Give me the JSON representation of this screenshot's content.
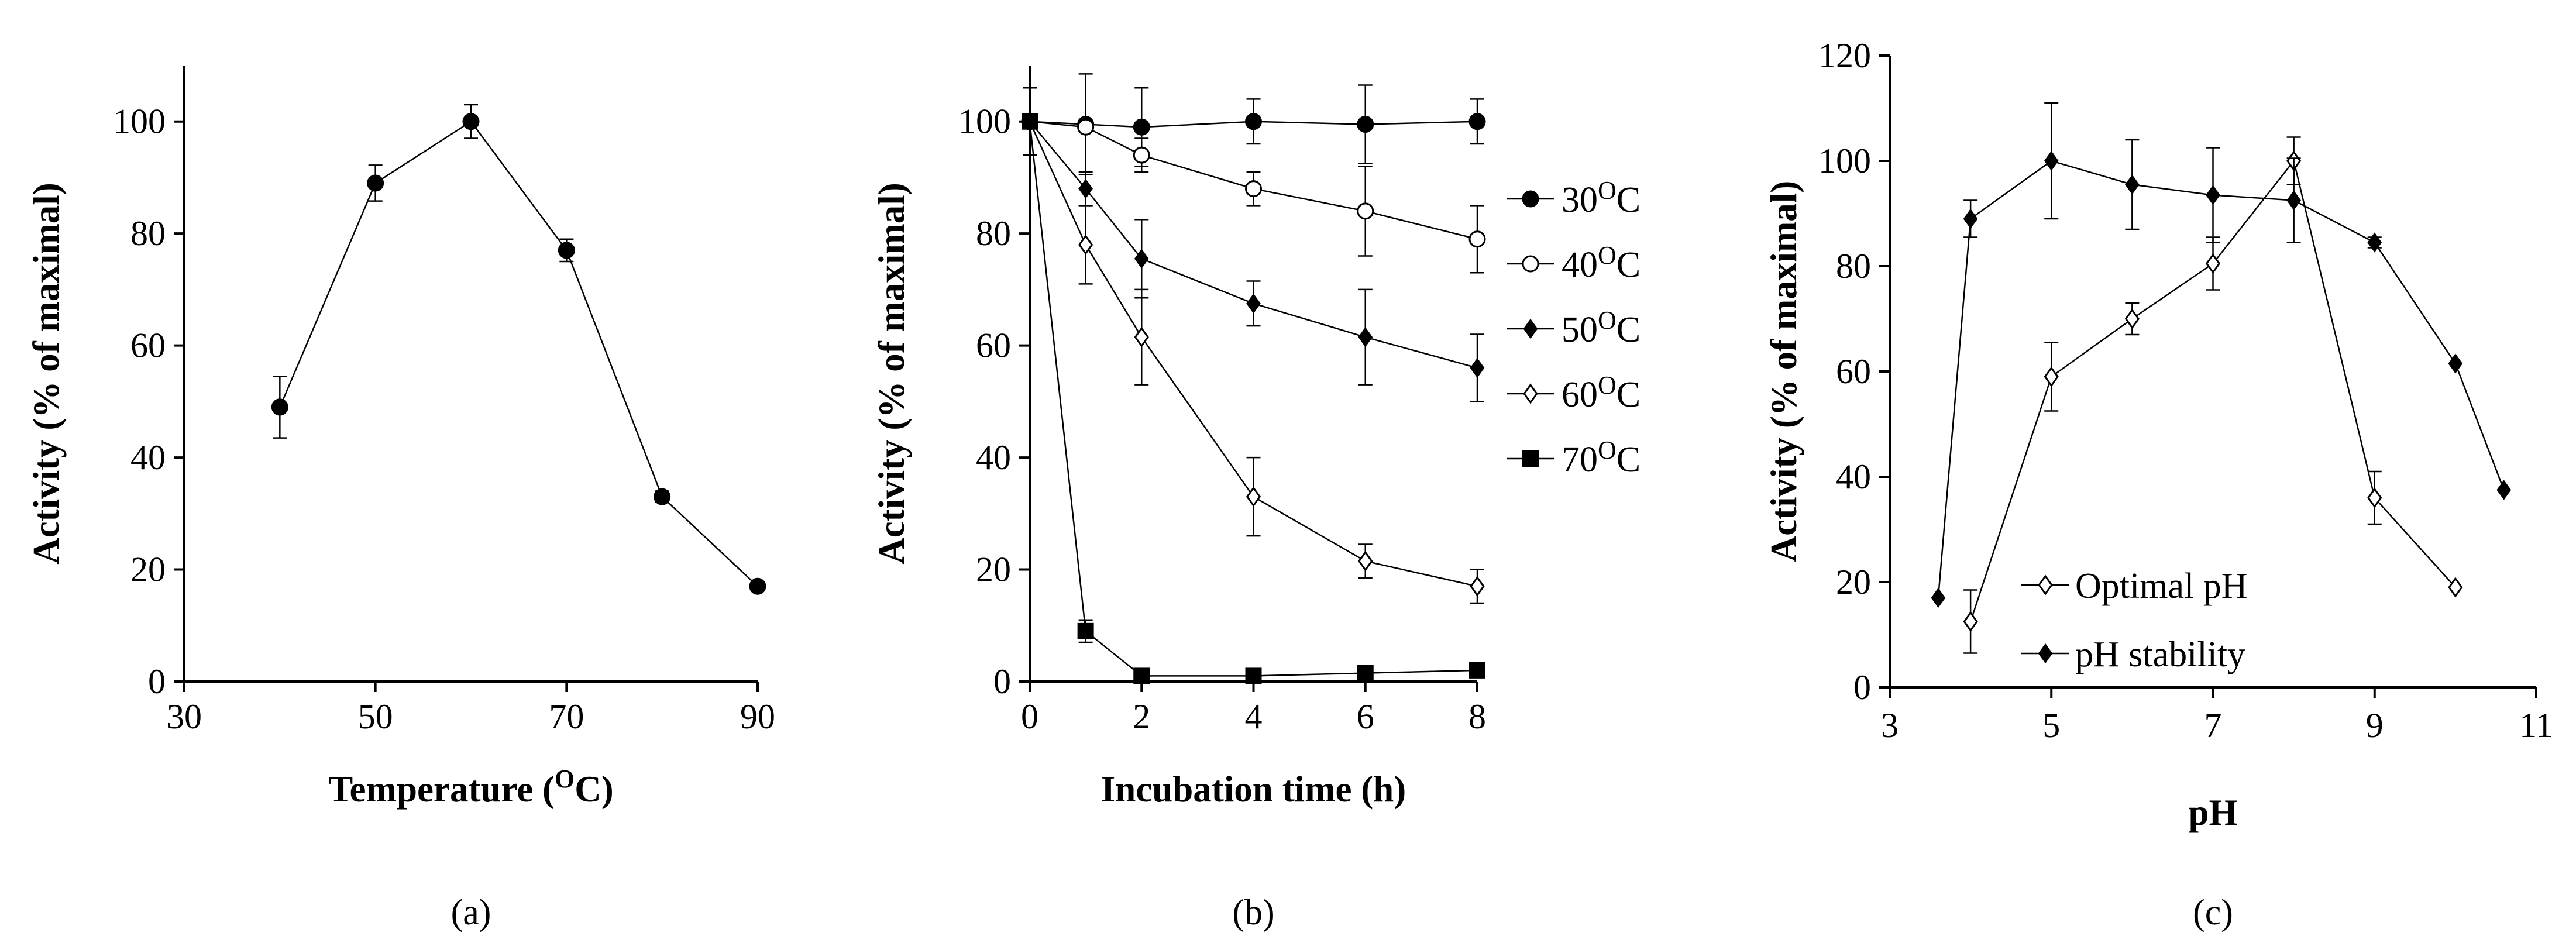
{
  "chart_data": [
    {
      "id": "a",
      "type": "scatter",
      "panel_label": "(a)",
      "xlabel": "Temperature (",
      "xlabel_sup": "O",
      "xlabel_tail": "C)",
      "ylabel": "Activity (% of maximal)",
      "xlim": [
        30,
        90
      ],
      "ylim": [
        0,
        110
      ],
      "xticks": [
        30,
        50,
        70,
        90
      ],
      "yticks": [
        0,
        20,
        40,
        60,
        80,
        100
      ],
      "series": [
        {
          "name": "activity",
          "marker": "circle-filled",
          "x": [
            40,
            50,
            60,
            70,
            80,
            90
          ],
          "y": [
            49,
            89,
            100,
            77,
            33,
            17
          ],
          "err": [
            5.5,
            3.2,
            3,
            2,
            1,
            0
          ]
        }
      ]
    },
    {
      "id": "b",
      "type": "line",
      "panel_label": "(b)",
      "xlabel": "Incubation time (h)",
      "ylabel": "Activity (% of maximal)",
      "xlim": [
        0,
        8
      ],
      "ylim": [
        0,
        110
      ],
      "xticks": [
        0,
        2,
        4,
        6,
        8
      ],
      "yticks": [
        0,
        20,
        40,
        60,
        80,
        100
      ],
      "legend_position": "right",
      "series": [
        {
          "name": "30",
          "unit": "C",
          "marker": "circle-filled",
          "x": [
            0,
            1,
            2,
            4,
            6,
            8
          ],
          "y": [
            100,
            99.5,
            99,
            100,
            99.5,
            100
          ],
          "err": [
            6,
            9,
            7,
            4,
            7,
            4
          ]
        },
        {
          "name": "40",
          "unit": "C",
          "marker": "circle-open",
          "x": [
            0,
            1,
            2,
            4,
            6,
            8
          ],
          "y": [
            100,
            99,
            94,
            88,
            84,
            79
          ],
          "err": [
            0,
            0,
            3,
            3,
            8,
            6
          ]
        },
        {
          "name": "50",
          "unit": "C",
          "marker": "diamond-filled",
          "x": [
            0,
            1,
            2,
            4,
            6,
            8
          ],
          "y": [
            100,
            88,
            75.5,
            67.5,
            61.5,
            56
          ],
          "err": [
            0,
            3,
            7,
            4,
            8.5,
            6
          ]
        },
        {
          "name": "60",
          "unit": "C",
          "marker": "diamond-open",
          "x": [
            0,
            1,
            2,
            4,
            6,
            8
          ],
          "y": [
            100,
            78,
            61.5,
            33,
            21.5,
            17
          ],
          "err": [
            0,
            7,
            8.5,
            7,
            3,
            3
          ]
        },
        {
          "name": "70",
          "unit": "C",
          "marker": "square-filled",
          "x": [
            0,
            1,
            2,
            4,
            6,
            8
          ],
          "y": [
            100,
            9,
            1,
            1,
            1.5,
            2
          ],
          "err": [
            0,
            2,
            0,
            0,
            0,
            0
          ]
        }
      ]
    },
    {
      "id": "c",
      "type": "line",
      "panel_label": "(c)",
      "xlabel": "pH",
      "ylabel": "Activity (% of maximal)",
      "xlim": [
        3,
        11
      ],
      "ylim": [
        0,
        120
      ],
      "xticks": [
        3,
        5,
        7,
        9,
        11
      ],
      "yticks": [
        0,
        20,
        40,
        60,
        80,
        100,
        120
      ],
      "legend_position": "bottom-left",
      "series": [
        {
          "name": "Optimal pH",
          "marker": "diamond-open",
          "x": [
            4,
            5,
            6,
            7,
            8,
            9,
            10
          ],
          "y": [
            12.5,
            59,
            70,
            80.5,
            100,
            36,
            19
          ],
          "err": [
            6,
            6.5,
            3,
            5,
            4.5,
            5,
            0
          ]
        },
        {
          "name": "pH stability",
          "marker": "diamond-filled",
          "x": [
            3.6,
            4,
            5,
            6,
            7,
            8,
            9,
            10,
            10.6
          ],
          "y": [
            17,
            89,
            100,
            95.5,
            93.5,
            92.5,
            84.5,
            61.5,
            37.5
          ],
          "err": [
            0,
            3.5,
            11,
            8.5,
            9,
            8,
            1,
            0,
            0
          ]
        }
      ]
    }
  ]
}
